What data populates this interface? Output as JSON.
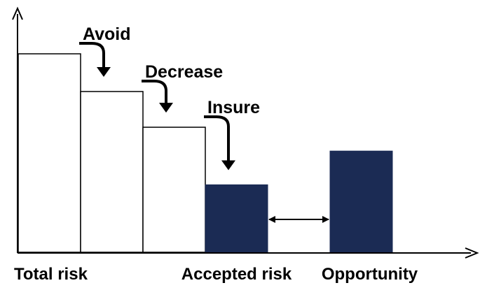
{
  "chart_data": {
    "type": "bar",
    "title": "",
    "xlabel": "",
    "ylabel": "",
    "ylim": [
      0,
      10
    ],
    "categories": [
      "Total risk",
      "",
      "",
      "Accepted risk",
      "",
      "Opportunity"
    ],
    "values": [
      10,
      8.1,
      6.3,
      3.4,
      null,
      5.1
    ],
    "bar_styles": [
      "outline",
      "outline",
      "outline",
      "filled",
      "none",
      "filled"
    ],
    "annotations": [
      {
        "text": "Avoid",
        "between": [
          0,
          1
        ]
      },
      {
        "text": "Decrease",
        "between": [
          1,
          2
        ]
      },
      {
        "text": "Insure",
        "between": [
          2,
          3
        ]
      }
    ],
    "comparison": {
      "from": "Accepted risk",
      "to": "Opportunity",
      "style": "double-arrow"
    },
    "colors": {
      "filled": "#1b2b54",
      "outline": "#000000",
      "axis": "#000000"
    },
    "grid": false,
    "legend": "none"
  }
}
